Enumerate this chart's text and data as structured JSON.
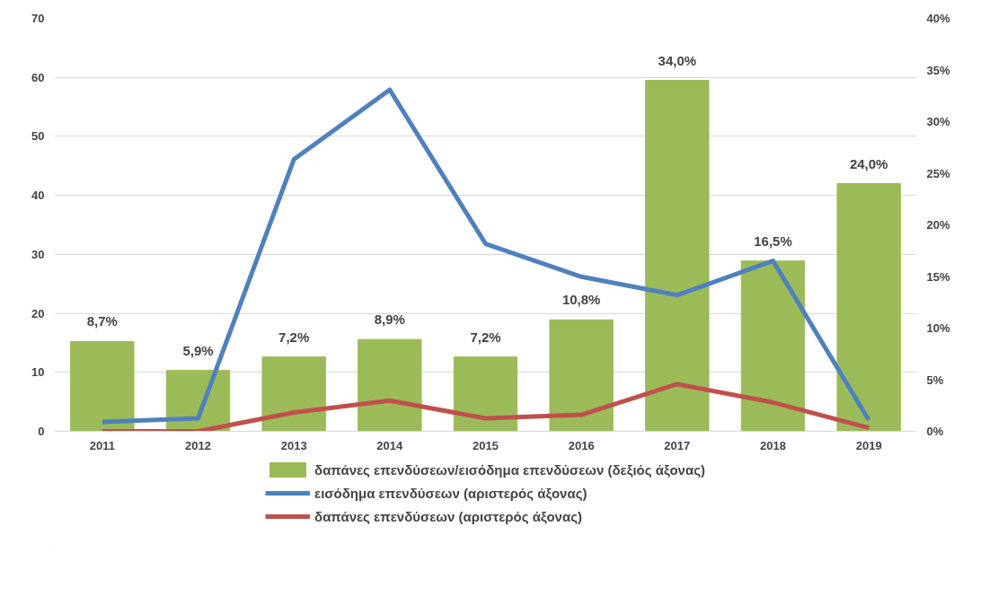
{
  "chart_data": {
    "type": "bar",
    "categories": [
      "2011",
      "2012",
      "2013",
      "2014",
      "2015",
      "2016",
      "2017",
      "2018",
      "2019"
    ],
    "series": [
      {
        "name": "δαπάνες επενδύσεων/εισόδημα επενδύσεων (δεξιός άξονας)",
        "axis": "y2",
        "color": "#9bbb59",
        "values": [
          8.7,
          5.9,
          7.2,
          8.9,
          7.2,
          10.8,
          34.0,
          16.5,
          24.0
        ],
        "value_labels": [
          "8,7%",
          "5,9%",
          "7,2%",
          "8,9%",
          "7,2%",
          "10,8%",
          "34,0%",
          "16,5%",
          "24,0%"
        ]
      },
      {
        "name": "εισόδημα επενδύσεων (αριστερός άξονας)",
        "type": "line",
        "color": "#4f81bd",
        "values": [
          1.6,
          2.2,
          46.1,
          57.9,
          31.8,
          26.2,
          23.1,
          28.9,
          1.9
        ]
      },
      {
        "name": "δαπάνες επενδύσεων (αριστερός άξονας)",
        "type": "line",
        "color": "#c0504d",
        "values": [
          0,
          0,
          3.2,
          5.2,
          2.2,
          2.8,
          8.0,
          4.9,
          0.6
        ]
      }
    ],
    "ylim": [
      0,
      70
    ],
    "yticks": [
      0,
      10,
      20,
      30,
      40,
      50,
      60,
      70
    ],
    "y2lim": [
      0,
      40
    ],
    "y2ticks": [
      {
        "value": 0,
        "label": "0%"
      },
      {
        "value": 5,
        "label": "5%"
      },
      {
        "value": 10,
        "label": "10%"
      },
      {
        "value": 15,
        "label": "15%"
      },
      {
        "value": 20,
        "label": "20%"
      },
      {
        "value": 25,
        "label": "25%"
      },
      {
        "value": 30,
        "label": "30%"
      },
      {
        "value": 35,
        "label": "35%"
      },
      {
        "value": 40,
        "label": "40%"
      }
    ],
    "grid": "y",
    "legend": "bottom",
    "marker": "none",
    "line_style": "solid"
  }
}
